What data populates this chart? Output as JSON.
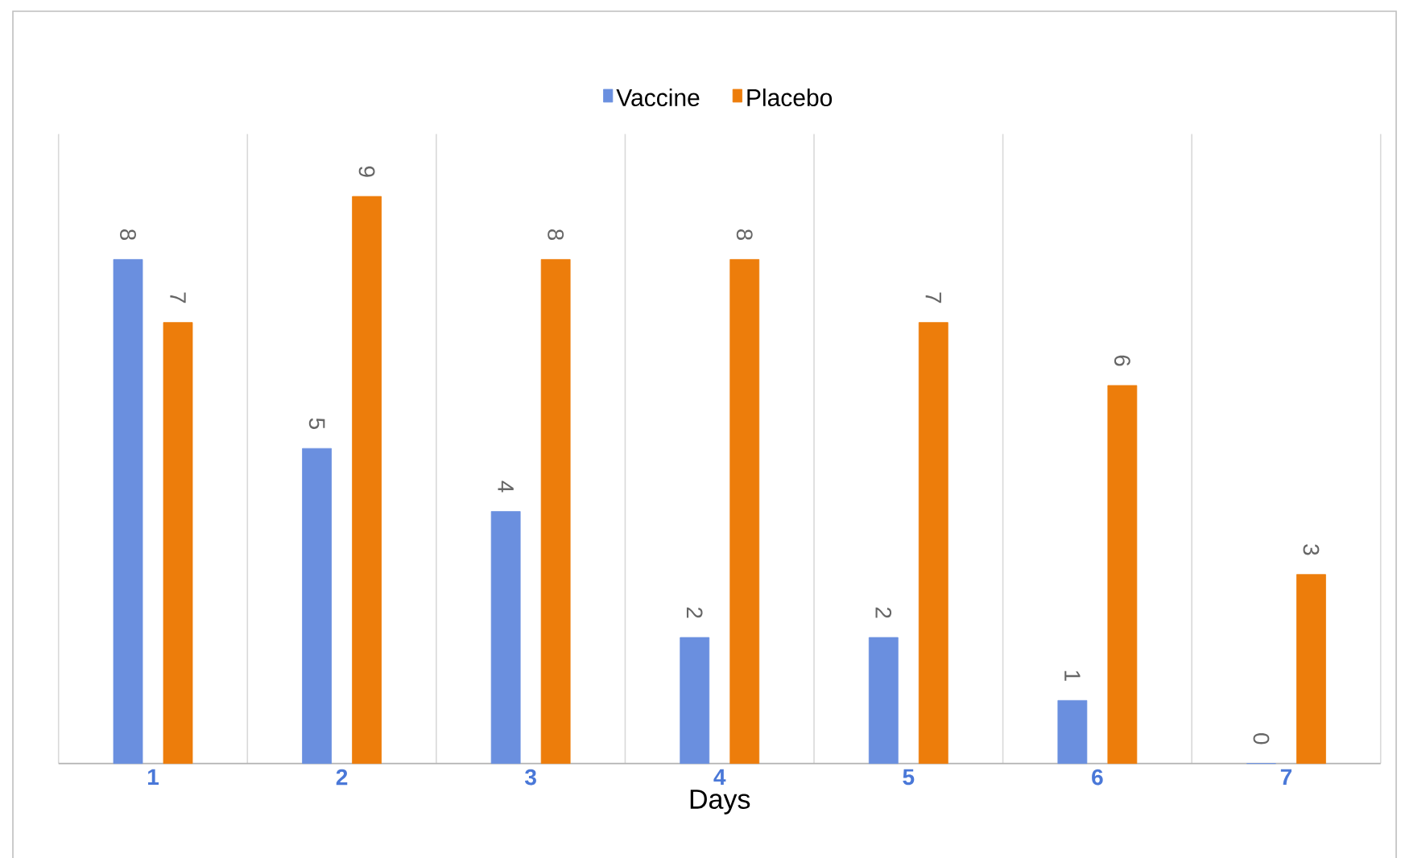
{
  "chart_data": {
    "type": "bar",
    "xlabel": "Days",
    "categories": [
      "1",
      "2",
      "3",
      "4",
      "5",
      "6",
      "7"
    ],
    "series": [
      {
        "name": "Vaccine",
        "color": "#6a8fdf",
        "values": [
          8,
          5,
          4,
          2,
          2,
          1,
          0
        ]
      },
      {
        "name": "Placebo",
        "color": "#ed7d0b",
        "values": [
          7,
          9,
          8,
          8,
          7,
          6,
          3
        ]
      }
    ],
    "data_labels": true,
    "grid": "x",
    "legend": "top"
  }
}
